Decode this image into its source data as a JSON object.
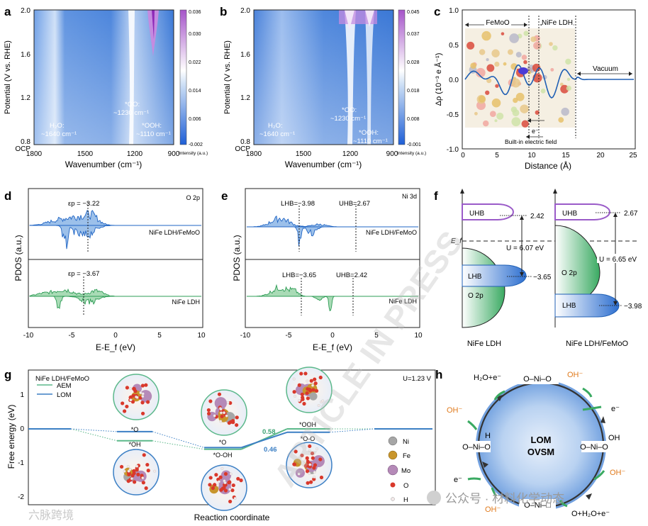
{
  "panel_letters": [
    "a",
    "b",
    "c",
    "d",
    "e",
    "f",
    "g",
    "h"
  ],
  "panel_a": {
    "y_label": "Potential (V vs. RHE)",
    "y_ticks": [
      "2.0",
      "1.6",
      "1.2",
      "0.8"
    ],
    "ocp": "OCP",
    "x_label": "Wavenumber (cm⁻¹)",
    "x_ticks": [
      "1800",
      "1500",
      "1200",
      "900"
    ],
    "colorbar_ticks": [
      "0.036",
      "0.030",
      "0.022",
      "0.014",
      "0.006",
      "-0.002"
    ],
    "colorbar_label": "Intensity (a.u.)",
    "ann_h2o_1": "H₂O:",
    "ann_h2o_2": "~1640 cm⁻¹",
    "ann_oo_1": "*OO:",
    "ann_oo_2": "~1230 cm⁻¹",
    "ann_ooh_1": "*OOH:",
    "ann_ooh_2": "~1110 cm⁻¹"
  },
  "panel_b": {
    "y_label": "Potential (V vs. RHE)",
    "y_ticks": [
      "2.0",
      "1.6",
      "1.2",
      "0.8"
    ],
    "ocp": "OCP",
    "x_label": "Wavenumber (cm⁻¹)",
    "x_ticks": [
      "1800",
      "1500",
      "1200",
      "900"
    ],
    "colorbar_ticks": [
      "0.045",
      "0.037",
      "0.028",
      "0.018",
      "0.008",
      "-0.001"
    ],
    "colorbar_label": "Intensity (a.u.)",
    "ann_h2o_1": "H₂O:",
    "ann_h2o_2": "~1640 cm⁻¹",
    "ann_oo_1": "*OO:",
    "ann_oo_2": "~1230 cm⁻¹",
    "ann_ooh_1": "*OOH:",
    "ann_ooh_2": "~1110 cm⁻¹"
  },
  "panel_c": {
    "y_label": "Δρ (10⁻³ e Å⁻¹)",
    "y_ticks": [
      "1.0",
      "0.5",
      "0.0",
      "-0.5",
      "-1.0"
    ],
    "x_label": "Distance (Å)",
    "x_ticks": [
      "0",
      "5",
      "10",
      "15",
      "20",
      "25"
    ],
    "label_femoo": "FeMoO",
    "label_nife": "NiFe LDH",
    "label_vacuum": "Vacuum",
    "label_e": "e⁻",
    "label_field": "Built-in electric field"
  },
  "panel_d": {
    "y_label": "PDOS (a.u.)",
    "x_label": "E-E_f (eV)",
    "x_ticks": [
      "-10",
      "-5",
      "0",
      "5",
      "10"
    ],
    "orbital": "O 2p",
    "top_eps": "εp = −3.22",
    "top_label": "NiFe LDH/FeMoO",
    "bot_eps": "εp = −3.67",
    "bot_label": "NiFe LDH"
  },
  "panel_e": {
    "y_label": "PDOS (a.u.)",
    "x_label": "E-E_f (eV)",
    "x_ticks": [
      "-10",
      "-5",
      "0",
      "5",
      "10"
    ],
    "orbital": "Ni 3d",
    "top_lhb": "LHB=−3.98",
    "top_uhb": "UHB=2.67",
    "top_label": "NiFe LDH/FeMoO",
    "bot_lhb": "LHB=−3.65",
    "bot_uhb": "UHB=2.42",
    "bot_label": "NiFe LDH"
  },
  "panel_f": {
    "ef": "E_f",
    "left": {
      "uhb": "UHB",
      "uhb_val": "2.42",
      "u": "U = 6.07 eV",
      "lhb": "LHB",
      "lhb_val": "−3.65",
      "o2p": "O 2p",
      "name": "NiFe LDH"
    },
    "right": {
      "uhb": "UHB",
      "uhb_val": "2.67",
      "u": "U = 6.65 eV",
      "lhb": "LHB",
      "lhb_val": "−3.98",
      "o2p": "O 2p",
      "name": "NiFe LDH/FeMoO"
    }
  },
  "panel_g": {
    "title": "NiFe LDH/FeMoO",
    "legend_aem": "AEM",
    "legend_lom": "LOM",
    "u_label": "U=1.23 V",
    "y_label": "Free energy (eV)",
    "y_ticks": [
      "1",
      "0",
      "-1",
      "-2"
    ],
    "x_label": "Reaction coordinate",
    "int_o": "*O",
    "int_oh": "*OH",
    "int_o2": "*O",
    "int_ooh_oh": "*O-OH",
    "int_ooh": "*OOH",
    "int_oo": "*O-O",
    "barrier_aem": "0.58",
    "barrier_lom": "0.46",
    "atoms": [
      "Ni",
      "Fe",
      "Mo",
      "O",
      "H"
    ],
    "colors": {
      "aem": "#5bb88a",
      "lom": "#3b7fc4",
      "ni": "#a6a6a6",
      "fe": "#c8952b",
      "mo": "#b58ab8",
      "o": "#d9382b",
      "h": "#f3e9e9"
    }
  },
  "panel_h": {
    "center_1": "LOM",
    "center_2": "OVSM",
    "species": [
      "H₂O+e⁻",
      "O–Ni–O",
      "OH⁻",
      "e⁻",
      "OH",
      "O–Ni–O",
      "OH⁻",
      "O+H₂O+e⁻",
      "O–Ni–□",
      "OH⁻",
      "e⁻",
      "H",
      "O–Ni–O",
      "OH⁻"
    ]
  },
  "watermark": "公众号 · 材料化学动态",
  "watermark2": "六脉跨境",
  "watermark3": "ARTICLE IN PRESS"
}
